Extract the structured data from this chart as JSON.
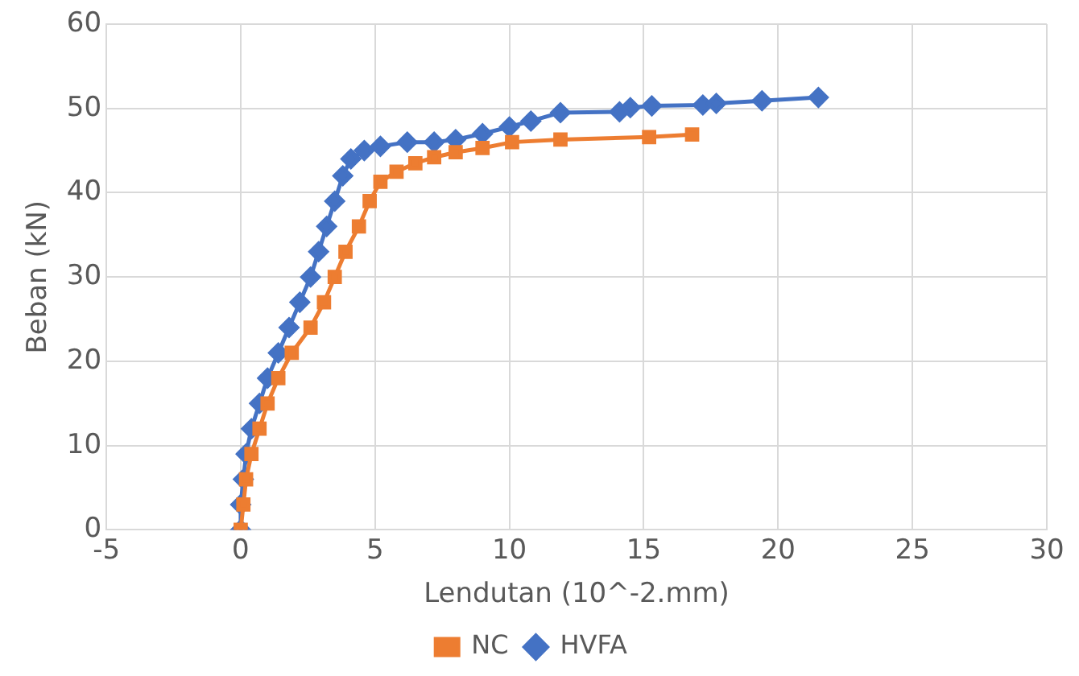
{
  "chart_data": {
    "type": "line",
    "xlabel": "Lendutan (10^-2.mm)",
    "ylabel": "Beban (kN)",
    "xlim": [
      -5,
      30
    ],
    "xticks": [
      -5,
      0,
      5,
      10,
      15,
      20,
      25,
      30
    ],
    "ylim": [
      0,
      60
    ],
    "yticks": [
      0,
      10,
      20,
      30,
      40,
      50,
      60
    ],
    "grid": true,
    "legend": "bottom",
    "line_style": "solid",
    "series": [
      {
        "name": "HVFA",
        "color": "#4472c4",
        "marker": "diamond",
        "x": [
          0,
          0,
          0.1,
          0.2,
          0.4,
          0.7,
          1.0,
          1.4,
          1.8,
          2.2,
          2.6,
          2.9,
          3.2,
          3.5,
          3.8,
          4.1,
          4.6,
          5.2,
          6.2,
          7.2,
          8,
          9,
          10,
          10.8,
          11.9,
          14.1,
          14.5,
          15.3,
          17.2,
          17.7,
          19.4,
          21.5
        ],
        "values": [
          0,
          3,
          6,
          9,
          12,
          15,
          18,
          21,
          24,
          27,
          30,
          33,
          36,
          39,
          42,
          44,
          45,
          45.5,
          46,
          46,
          46.3,
          47,
          47.8,
          48.5,
          49.5,
          49.6,
          50.1,
          50.3,
          50.4,
          50.6,
          50.9,
          51.3
        ]
      },
      {
        "name": "NC",
        "color": "#ed7d31",
        "marker": "square",
        "x": [
          0,
          0.1,
          0.2,
          0.4,
          0.7,
          1.0,
          1.4,
          1.9,
          2.6,
          3.1,
          3.5,
          3.9,
          4.4,
          4.8,
          5.2,
          5.8,
          6.5,
          7.2,
          8,
          9,
          10.1,
          11.9,
          15.2,
          16.8
        ],
        "values": [
          0,
          3,
          6,
          9,
          12,
          15,
          18,
          21,
          24,
          27,
          30,
          33,
          36,
          39,
          41.3,
          42.5,
          43.5,
          44.2,
          44.8,
          45.3,
          46,
          46.3,
          46.6,
          46.9
        ]
      }
    ]
  }
}
